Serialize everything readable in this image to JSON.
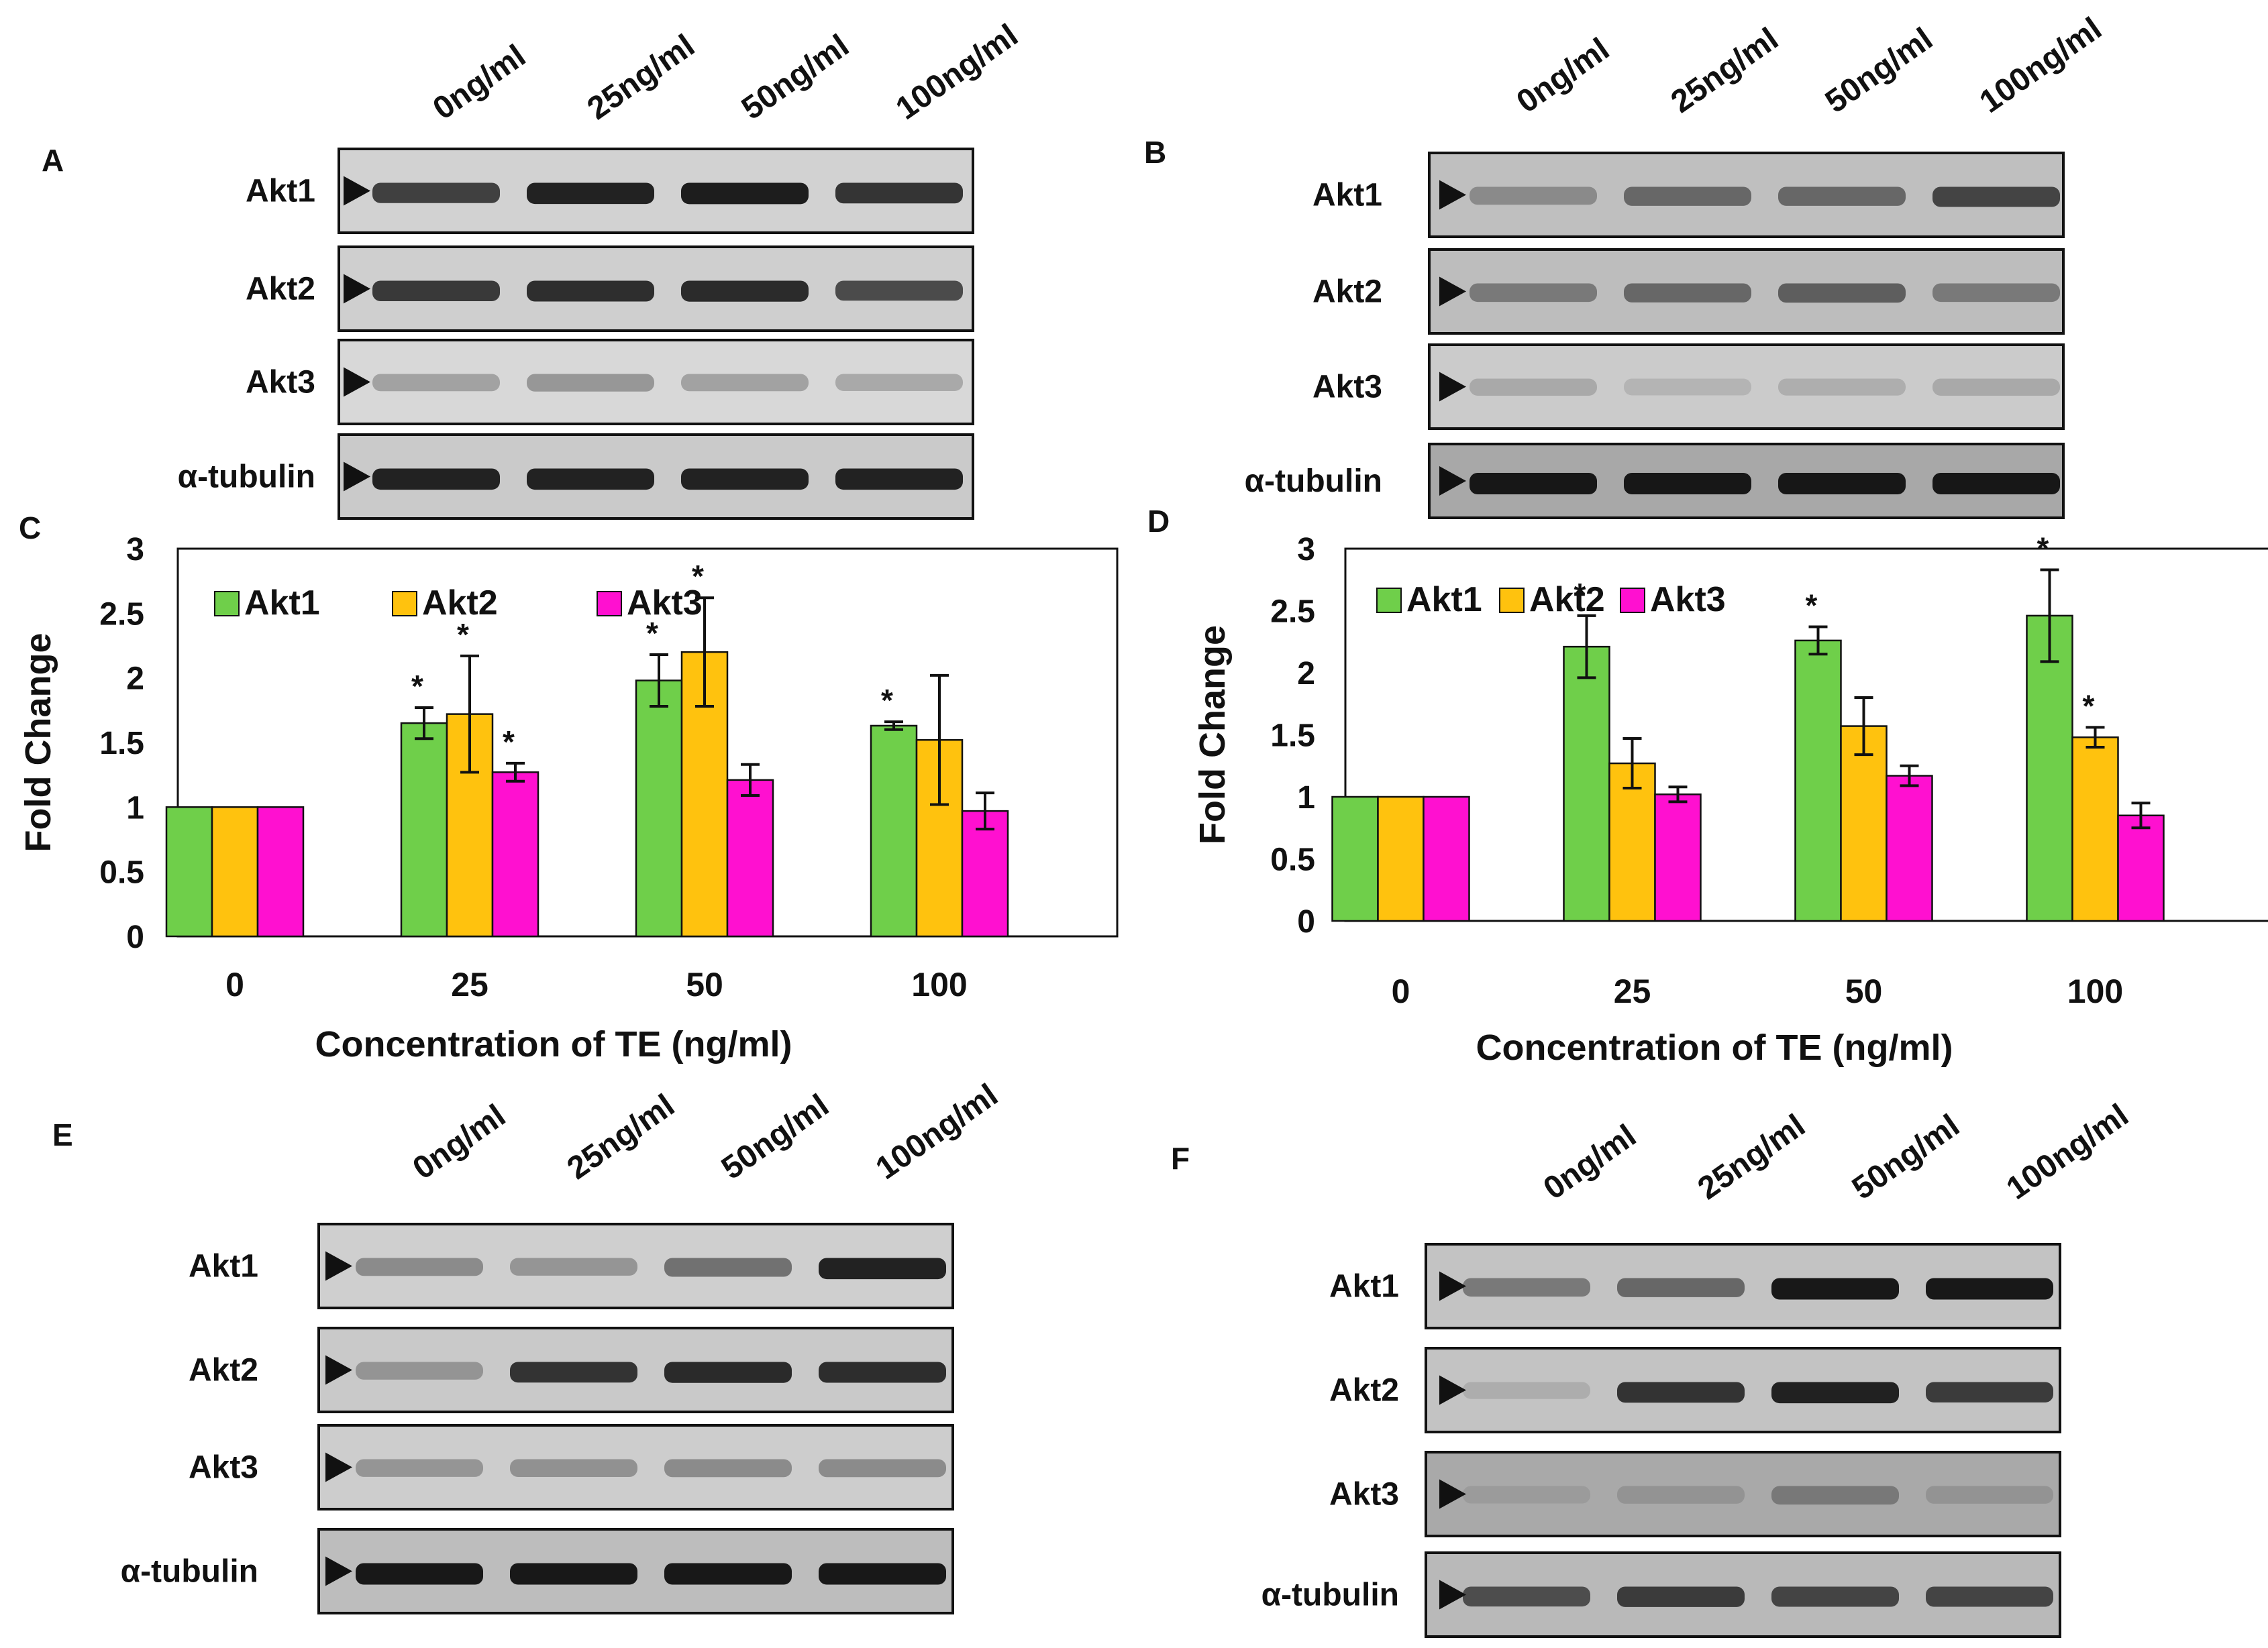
{
  "colors": {
    "akt1": "#6fcf4a",
    "akt2": "#ffc20e",
    "akt3": "#ff10d0"
  },
  "panels": {
    "A": {
      "letter": "A",
      "lanes": [
        "0ng/ml",
        "25ng/ml",
        "50ng/ml",
        "100ng/ml"
      ],
      "rows": [
        {
          "label": "Akt1",
          "intensity": [
            0.78,
            0.95,
            0.98,
            0.85
          ]
        },
        {
          "label": "Akt2",
          "intensity": [
            0.82,
            0.88,
            0.9,
            0.72
          ]
        },
        {
          "label": "Akt3",
          "intensity": [
            0.22,
            0.28,
            0.22,
            0.18
          ]
        },
        {
          "label": "α-tubulin",
          "intensity": [
            0.95,
            0.95,
            0.95,
            0.95
          ]
        }
      ]
    },
    "B": {
      "letter": "B",
      "lanes": [
        "0ng/ml",
        "25ng/ml",
        "50ng/ml",
        "100ng/ml"
      ],
      "rows": [
        {
          "label": "Akt1",
          "intensity": [
            0.35,
            0.55,
            0.55,
            0.75
          ]
        },
        {
          "label": "Akt2",
          "intensity": [
            0.45,
            0.55,
            0.6,
            0.45
          ]
        },
        {
          "label": "Akt3",
          "intensity": [
            0.18,
            0.12,
            0.15,
            0.18
          ]
        },
        {
          "label": "α-tubulin",
          "intensity": [
            1.0,
            1.0,
            1.0,
            1.0
          ]
        }
      ]
    },
    "E": {
      "letter": "E",
      "lanes": [
        "0ng/ml",
        "25ng/ml",
        "50ng/ml",
        "100ng/ml"
      ],
      "rows": [
        {
          "label": "Akt1",
          "intensity": [
            0.35,
            0.3,
            0.5,
            0.95
          ]
        },
        {
          "label": "Akt2",
          "intensity": [
            0.3,
            0.85,
            0.9,
            0.88
          ]
        },
        {
          "label": "Akt3",
          "intensity": [
            0.3,
            0.32,
            0.35,
            0.35
          ]
        },
        {
          "label": "α-tubulin",
          "intensity": [
            1.0,
            1.0,
            1.0,
            1.0
          ]
        }
      ]
    },
    "F": {
      "letter": "F",
      "lanes": [
        "0ng/ml",
        "25ng/ml",
        "50ng/ml",
        "100ng/ml"
      ],
      "rows": [
        {
          "label": "Akt1",
          "intensity": [
            0.45,
            0.55,
            1.0,
            1.0
          ]
        },
        {
          "label": "Akt2",
          "intensity": [
            0.15,
            0.85,
            0.95,
            0.8
          ]
        },
        {
          "label": "Akt3",
          "intensity": [
            0.25,
            0.3,
            0.45,
            0.3
          ]
        },
        {
          "label": "α-tubulin",
          "intensity": [
            0.7,
            0.8,
            0.75,
            0.75
          ]
        }
      ]
    }
  },
  "chart_data": [
    {
      "panel": "C",
      "type": "bar",
      "categories": [
        "0",
        "25",
        "50",
        "100"
      ],
      "xlabel": "Concentration of TE (ng/ml)",
      "ylabel": "Fold Change",
      "ylim": [
        0,
        3
      ],
      "yticks": [
        "0",
        "0.5",
        "1",
        "1.5",
        "2",
        "2.5",
        "3"
      ],
      "legend_position": "top-left, horizontal",
      "series": [
        {
          "name": "Akt1",
          "values": [
            1.0,
            1.65,
            1.98,
            1.63
          ],
          "errors": [
            0,
            0.12,
            0.2,
            0.03
          ],
          "sig": [
            false,
            true,
            true,
            true
          ]
        },
        {
          "name": "Akt2",
          "values": [
            1.0,
            1.72,
            2.2,
            1.52
          ],
          "errors": [
            0,
            0.45,
            0.42,
            0.5
          ],
          "sig": [
            false,
            true,
            true,
            false
          ]
        },
        {
          "name": "Akt3",
          "values": [
            1.0,
            1.27,
            1.21,
            0.97
          ],
          "errors": [
            0,
            0.07,
            0.12,
            0.14
          ],
          "sig": [
            false,
            true,
            false,
            false
          ]
        }
      ],
      "sig_marker": "*"
    },
    {
      "panel": "D",
      "type": "bar",
      "categories": [
        "0",
        "25",
        "50",
        "100"
      ],
      "xlabel": "Concentration of TE (ng/ml)",
      "ylabel": "Fold Change",
      "ylim": [
        0,
        3
      ],
      "yticks": [
        "0",
        "0.5",
        "1",
        "1.5",
        "2",
        "2.5",
        "3"
      ],
      "legend_position": "top-left, horizontal",
      "series": [
        {
          "name": "Akt1",
          "values": [
            1.0,
            2.21,
            2.26,
            2.46
          ],
          "errors": [
            0,
            0.25,
            0.11,
            0.37
          ],
          "sig": [
            false,
            true,
            true,
            true
          ]
        },
        {
          "name": "Akt2",
          "values": [
            1.0,
            1.27,
            1.57,
            1.48
          ],
          "errors": [
            0,
            0.2,
            0.23,
            0.08
          ],
          "sig": [
            false,
            false,
            false,
            true
          ]
        },
        {
          "name": "Akt3",
          "values": [
            1.0,
            1.02,
            1.17,
            0.85
          ],
          "errors": [
            0,
            0.06,
            0.08,
            0.1
          ],
          "sig": [
            false,
            false,
            false,
            false
          ]
        }
      ],
      "sig_marker": "*"
    }
  ]
}
